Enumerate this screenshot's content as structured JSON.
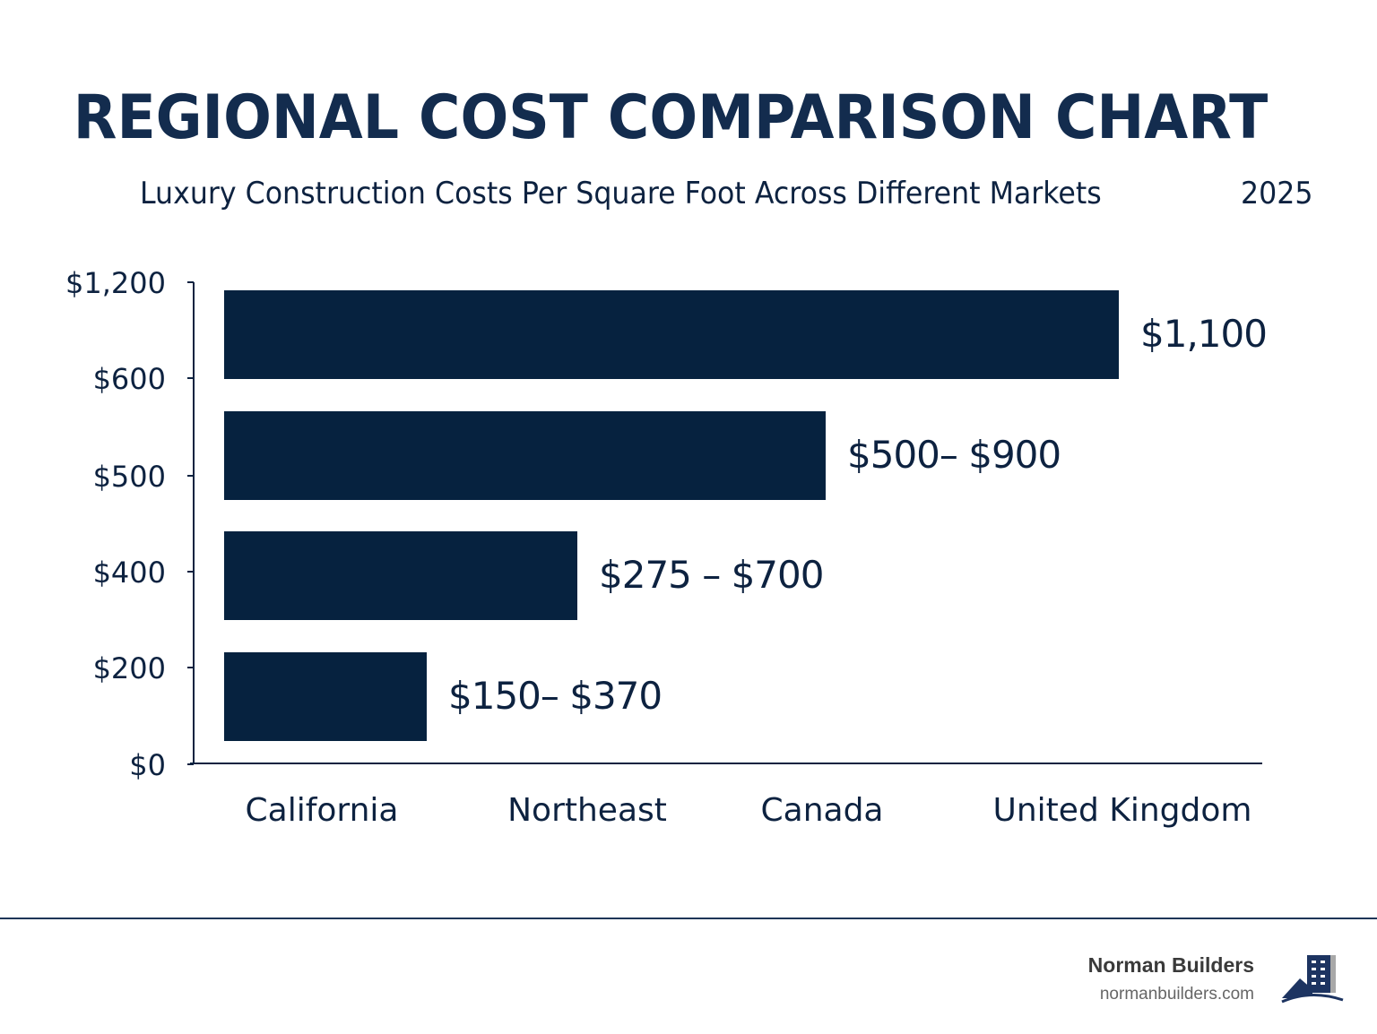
{
  "chart_data": {
    "type": "bar",
    "orientation": "horizontal",
    "title": "REGIONAL COST COMPARISON CHART",
    "subtitle": "Luxury Construction Costs Per Square Foot Across Different Markets",
    "year": "2025",
    "y_tick_labels": [
      "$1,200",
      "$600",
      "$500",
      "$400",
      "$200",
      "$0"
    ],
    "categories": [
      "California",
      "Northeast",
      "Canada",
      "United Kingdom"
    ],
    "bars": [
      {
        "label": "$1,100",
        "low": 1100,
        "high": 1100
      },
      {
        "label": "$500– $900",
        "low": 500,
        "high": 900
      },
      {
        "label": "$275 – $700",
        "low": 275,
        "high": 700
      },
      {
        "label": "$150– $370",
        "low": 150,
        "high": 370
      }
    ],
    "bar_color": "#06223f",
    "grid": false,
    "legend": "none"
  },
  "footer": {
    "brand": "Norman Builders",
    "url": "normanbuilders.com",
    "logo_colors": {
      "navy": "#1d3461",
      "gray": "#a8a8a8"
    }
  }
}
